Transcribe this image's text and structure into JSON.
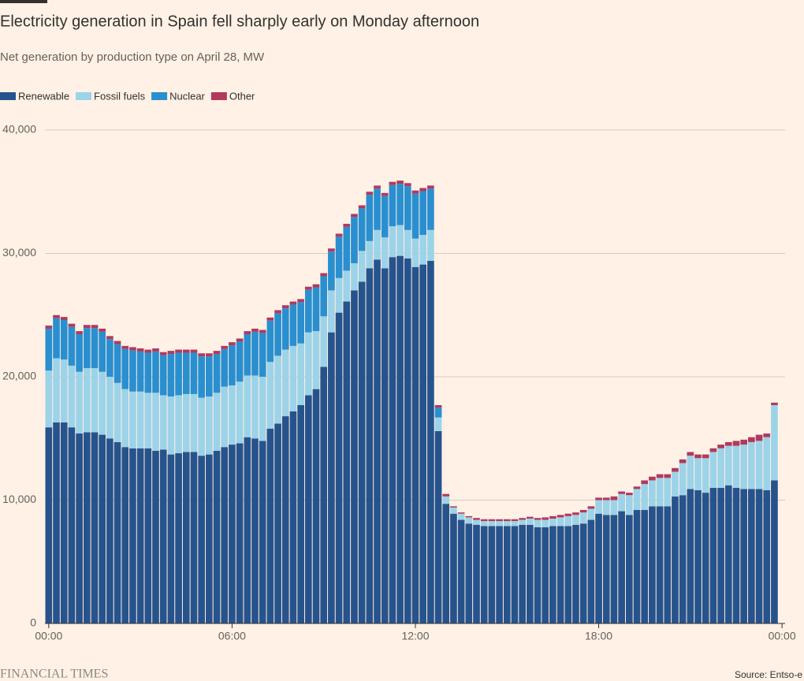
{
  "chart_data": {
    "type": "stacked-bar",
    "title": "Electricity generation in Spain fell sharply early on Monday afternoon",
    "subtitle": "Net generation by production type on April 28, MW",
    "source": "Source: Entso-e",
    "brand": "FINANCIAL TIMES",
    "legend": "top-left",
    "grid": true,
    "x": [
      0,
      0.25,
      0.5,
      0.75,
      1,
      1.25,
      1.5,
      1.75,
      2,
      2.25,
      2.5,
      2.75,
      3,
      3.25,
      3.5,
      3.75,
      4,
      4.25,
      4.5,
      4.75,
      5,
      5.25,
      5.5,
      5.75,
      6,
      6.25,
      6.5,
      6.75,
      7,
      7.25,
      7.5,
      7.75,
      8,
      8.25,
      8.5,
      8.75,
      9,
      9.25,
      9.5,
      9.75,
      10,
      10.25,
      10.5,
      10.75,
      11,
      11.25,
      11.5,
      11.75,
      12,
      12.25,
      12.5,
      12.75,
      13,
      13.25,
      13.5,
      13.75,
      14,
      14.25,
      14.5,
      14.75,
      15,
      15.25,
      15.5,
      15.75,
      16,
      16.25,
      16.5,
      16.75,
      17,
      17.25,
      17.5,
      17.75,
      18,
      18.25,
      18.5,
      18.75,
      19,
      19.25,
      19.5,
      19.75,
      20,
      20.25,
      20.5,
      20.75,
      21,
      21.25,
      21.5,
      21.75,
      22,
      22.25,
      22.5,
      22.75,
      23,
      23.25,
      23.5,
      23.75
    ],
    "xlim": [
      -0.125,
      24.1
    ],
    "xticks": [
      {
        "value": 0,
        "label": "00:00"
      },
      {
        "value": 6,
        "label": "06:00"
      },
      {
        "value": 12,
        "label": "12:00"
      },
      {
        "value": 18,
        "label": "18:00"
      },
      {
        "value": 24,
        "label": "00:00"
      }
    ],
    "ylim": [
      0,
      40000
    ],
    "yticks": [
      0,
      {
        "value": 10000,
        "label": "10,000"
      },
      {
        "value": 20000,
        "label": "20,000"
      },
      {
        "value": 30000,
        "label": "30,000"
      },
      {
        "value": 40000,
        "label": "40,000"
      }
    ],
    "series": [
      {
        "name": "Renewable",
        "color": "#27538c",
        "values": [
          15900,
          16300,
          16300,
          15900,
          15400,
          15500,
          15500,
          15300,
          15000,
          14700,
          14300,
          14200,
          14200,
          14200,
          14000,
          14100,
          13700,
          13800,
          13900,
          13900,
          13600,
          13700,
          14000,
          14300,
          14500,
          14600,
          15100,
          15000,
          14800,
          15800,
          16200,
          16800,
          17200,
          17700,
          18500,
          19000,
          20800,
          23600,
          25200,
          26100,
          27000,
          27700,
          28800,
          29500,
          28800,
          29700,
          29800,
          29600,
          28900,
          29100,
          29400,
          15600,
          9700,
          8900,
          8400,
          8100,
          8000,
          7900,
          7900,
          7900,
          7900,
          7900,
          8000,
          8000,
          7800,
          7800,
          7900,
          7900,
          7900,
          8000,
          8100,
          8400,
          8900,
          8800,
          8800,
          9100,
          8800,
          9200,
          9200,
          9500,
          9500,
          9500,
          10300,
          10400,
          10900,
          10800,
          10600,
          11000,
          11000,
          11200,
          11000,
          10900,
          10900,
          10900,
          10800,
          11600
        ]
      },
      {
        "name": "Fossil fuels",
        "color": "#9dd3e8",
        "values": [
          4600,
          5200,
          5100,
          5000,
          5000,
          5200,
          5200,
          5100,
          5000,
          4800,
          4700,
          4600,
          4600,
          4500,
          4700,
          4400,
          4700,
          4700,
          4700,
          4700,
          4700,
          4700,
          4700,
          4900,
          4800,
          5000,
          5000,
          5100,
          5200,
          5400,
          5500,
          5400,
          5300,
          5000,
          5100,
          4700,
          4100,
          3400,
          2800,
          2500,
          2200,
          2500,
          2200,
          2400,
          2500,
          2500,
          2500,
          2300,
          2300,
          2400,
          2500,
          1100,
          600,
          500,
          500,
          500,
          400,
          400,
          400,
          400,
          400,
          400,
          400,
          500,
          600,
          600,
          600,
          700,
          800,
          800,
          900,
          900,
          1100,
          1200,
          1200,
          1400,
          1600,
          1700,
          2100,
          2100,
          2300,
          2300,
          2000,
          2600,
          2700,
          2600,
          2800,
          2900,
          3200,
          3200,
          3400,
          3600,
          3800,
          3900,
          4300,
          6100
        ]
      },
      {
        "name": "Nuclear",
        "color": "#2a8fcf",
        "values": [
          3400,
          3250,
          3200,
          3150,
          3050,
          3250,
          3250,
          3250,
          3050,
          3150,
          3250,
          3350,
          3250,
          3250,
          3350,
          3250,
          3450,
          3450,
          3350,
          3350,
          3350,
          3250,
          3150,
          3050,
          3250,
          3250,
          3350,
          3550,
          3550,
          3350,
          3450,
          3350,
          3350,
          3350,
          3450,
          3550,
          3250,
          3150,
          3350,
          3550,
          3750,
          3450,
          3750,
          3350,
          3350,
          3350,
          3350,
          3550,
          3650,
          3550,
          3350,
          800,
          0,
          0,
          0,
          0,
          0,
          0,
          0,
          0,
          0,
          0,
          0,
          0,
          0,
          0,
          0,
          0,
          0,
          0,
          0,
          0,
          0,
          0,
          0,
          0,
          0,
          0,
          0,
          0,
          0,
          0,
          0,
          0,
          0,
          0,
          0,
          0,
          0,
          0,
          0,
          0,
          0,
          0,
          0,
          0
        ]
      },
      {
        "name": "Other",
        "color": "#b03a5e",
        "values": [
          250,
          250,
          250,
          250,
          250,
          250,
          250,
          250,
          250,
          250,
          250,
          250,
          250,
          250,
          250,
          250,
          250,
          250,
          250,
          250,
          250,
          250,
          250,
          250,
          250,
          250,
          250,
          250,
          250,
          250,
          250,
          250,
          250,
          250,
          250,
          250,
          250,
          250,
          250,
          250,
          250,
          250,
          250,
          250,
          250,
          250,
          250,
          250,
          250,
          250,
          250,
          200,
          200,
          100,
          100,
          100,
          150,
          150,
          150,
          150,
          150,
          150,
          150,
          150,
          150,
          200,
          200,
          200,
          200,
          200,
          200,
          200,
          200,
          200,
          300,
          200,
          200,
          200,
          300,
          300,
          300,
          300,
          300,
          300,
          300,
          300,
          300,
          300,
          300,
          300,
          400,
          400,
          400,
          500,
          300,
          200
        ]
      }
    ]
  }
}
